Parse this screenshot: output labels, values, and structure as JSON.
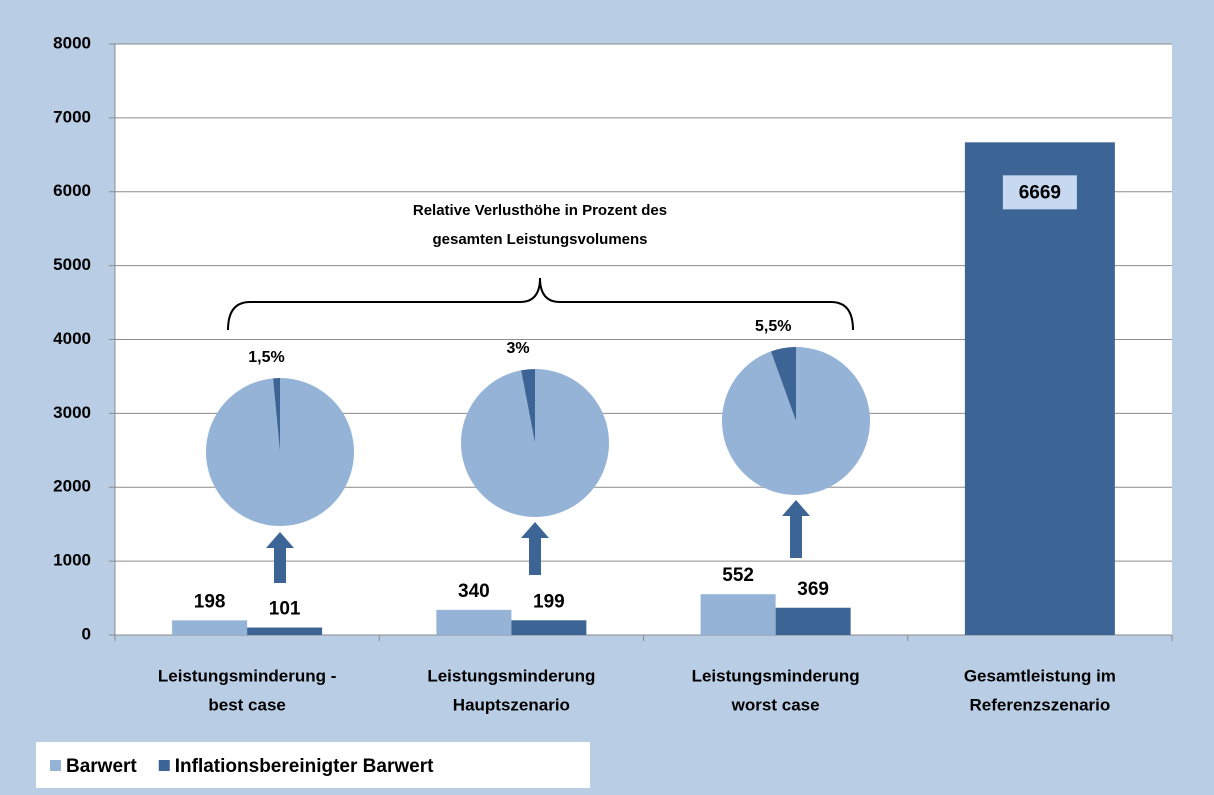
{
  "chart_data": {
    "type": "bar",
    "categories": [
      [
        "Leistungsminderung -",
        "best case"
      ],
      [
        "Leistungsminderung",
        "Hauptszenario"
      ],
      [
        "Leistungsminderung",
        "worst case"
      ],
      [
        "Gesamtleistung im",
        "Referenzszenario"
      ]
    ],
    "series": [
      {
        "name": "Barwert",
        "color": "#95b3d7",
        "values": [
          198,
          340,
          552,
          null
        ]
      },
      {
        "name": "Inflationsbereinigter Barwert",
        "color": "#3c6494",
        "values": [
          101,
          199,
          369,
          6669
        ]
      }
    ],
    "ylim": [
      0,
      8000
    ],
    "yticks": [
      0,
      1000,
      2000,
      3000,
      4000,
      5000,
      6000,
      7000,
      8000
    ],
    "grid": true,
    "annotation": [
      "Relative Verlusthöhe in Prozent des",
      "gesamten Leistungsvolumens"
    ],
    "pie_values": [
      1.5,
      3,
      5.5
    ],
    "pie_labels": [
      "1,5%",
      "3%",
      "5,5%"
    ]
  }
}
